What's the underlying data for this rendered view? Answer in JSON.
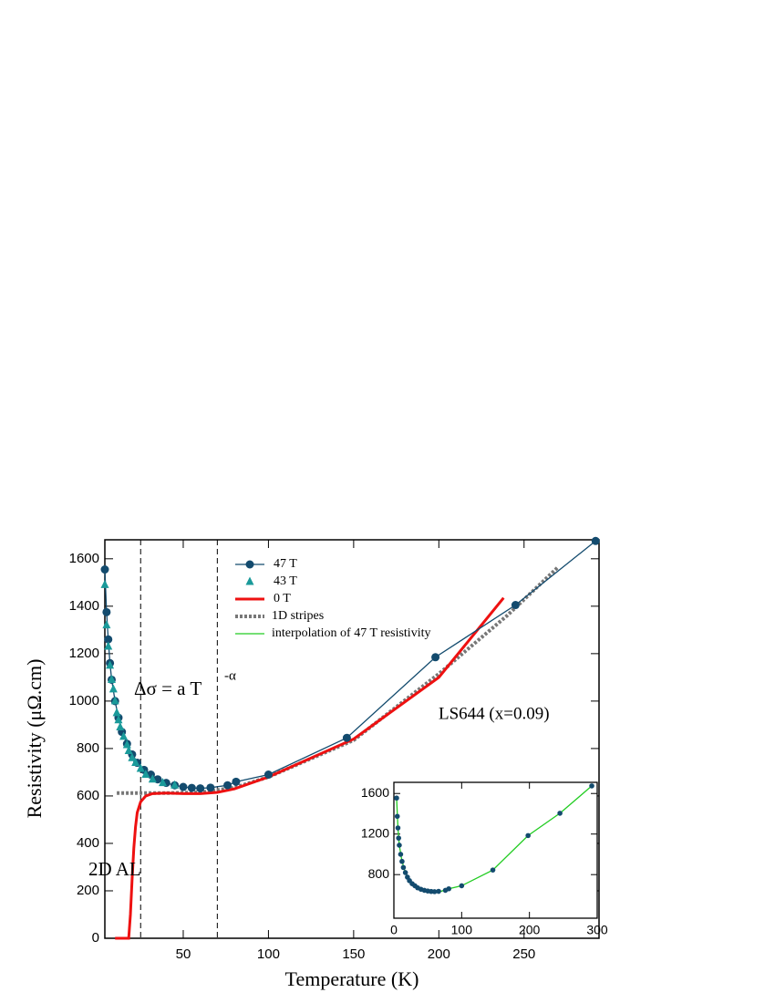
{
  "chart_data": {
    "type": "scatter",
    "xlabel": "Temperature (K)",
    "ylabel": "Resistivity (μΩ.cm)",
    "xlim": [
      4,
      294
    ],
    "ylim": [
      0,
      1680
    ],
    "xticks": [
      50,
      100,
      150,
      200,
      250
    ],
    "yticks": [
      0,
      200,
      400,
      600,
      800,
      1000,
      1200,
      1400,
      1600
    ],
    "vlines": [
      25,
      70
    ],
    "annotations": [
      "Δσ = a T",
      "-α",
      "2D AL",
      "LS644 (x=0.09)"
    ],
    "series": [
      {
        "name": "47 T",
        "color": "#134b6e",
        "marker": "circle",
        "line": "solid",
        "x": [
          4,
          5,
          6,
          7,
          8,
          10,
          12,
          14,
          17,
          20,
          23,
          27,
          31,
          35,
          40,
          45,
          50,
          55,
          60,
          66,
          76,
          81,
          100,
          146,
          198,
          245,
          292
        ],
        "values": [
          1555,
          1375,
          1260,
          1160,
          1090,
          1000,
          930,
          870,
          820,
          775,
          740,
          710,
          690,
          670,
          655,
          645,
          638,
          634,
          632,
          635,
          645,
          660,
          690,
          845,
          1185,
          1405,
          1675
        ]
      },
      {
        "name": "43 T",
        "color": "#1a9a9a",
        "marker": "triangle",
        "line": "none",
        "x": [
          4,
          5,
          6,
          7,
          8,
          9,
          10,
          11,
          12,
          13,
          15,
          17,
          18,
          20,
          22,
          25,
          28,
          32,
          38,
          45
        ],
        "values": [
          1490,
          1320,
          1230,
          1150,
          1090,
          1050,
          1000,
          950,
          920,
          890,
          850,
          815,
          790,
          760,
          740,
          715,
          690,
          670,
          655,
          645
        ]
      },
      {
        "name": "0 T",
        "color": "#ee1111",
        "marker": "none",
        "line": "thick",
        "x": [
          10,
          18,
          19,
          20,
          21,
          22,
          23,
          25,
          28,
          32,
          40,
          50,
          60,
          70,
          80,
          100,
          150,
          200,
          238
        ],
        "values": [
          0,
          0,
          100,
          250,
          380,
          470,
          530,
          575,
          600,
          610,
          612,
          610,
          610,
          615,
          630,
          680,
          840,
          1100,
          1435
        ]
      },
      {
        "name": "1D stripes",
        "color": "#777777",
        "marker": "none",
        "line": "dotted",
        "x": [
          11,
          40,
          60,
          80,
          100,
          150,
          200,
          240,
          270
        ],
        "values": [
          612,
          612,
          615,
          635,
          680,
          835,
          1115,
          1360,
          1565
        ]
      },
      {
        "name": "interpolation of 47 T resistivity",
        "color": "#22cc22",
        "marker": "none",
        "line": "solid",
        "panel": "inset",
        "x": [
          4,
          6,
          8,
          12,
          17,
          23,
          31,
          40,
          50,
          60,
          70,
          81,
          100,
          146,
          198,
          245,
          292
        ],
        "values": [
          1555,
          1260,
          1090,
          930,
          820,
          740,
          690,
          655,
          638,
          632,
          636,
          660,
          690,
          845,
          1185,
          1405,
          1675
        ]
      }
    ],
    "inset": {
      "xlim": [
        0,
        300
      ],
      "ylim": [
        370,
        1710
      ],
      "xticks": [
        0,
        100,
        200,
        300
      ],
      "yticks": [
        800,
        1200,
        1600
      ]
    }
  }
}
